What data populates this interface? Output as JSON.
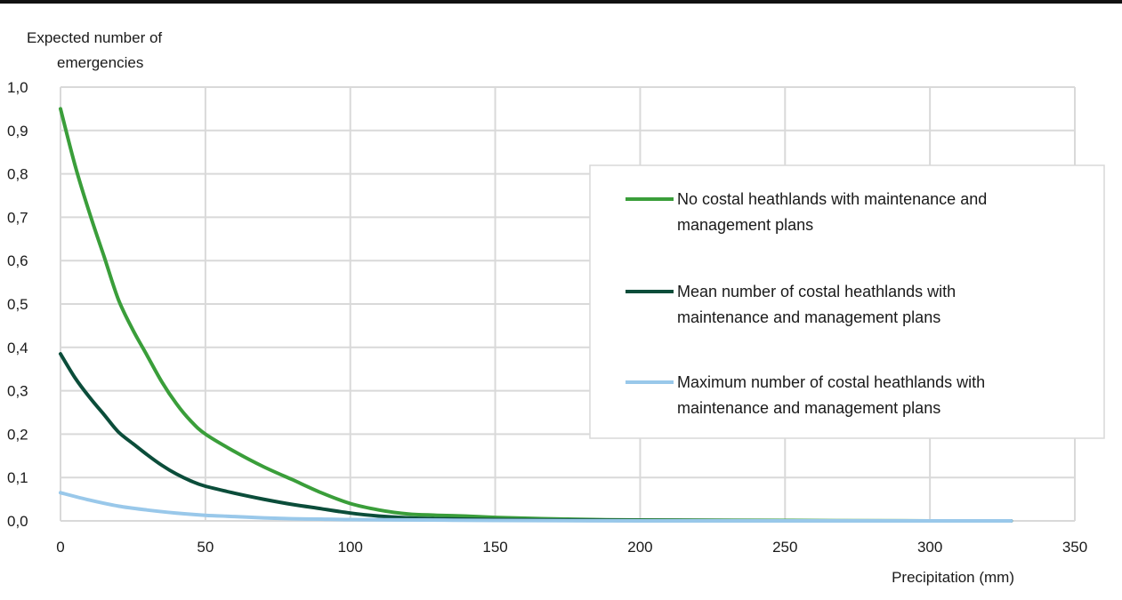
{
  "chart_data": {
    "type": "line",
    "title": "",
    "ylabel_lines": [
      "Expected number of",
      "emergencies"
    ],
    "xlabel": "Precipitation (mm)",
    "xlim": [
      0,
      350
    ],
    "ylim": [
      0,
      1.0
    ],
    "x_ticks": [
      0,
      50,
      100,
      150,
      200,
      250,
      300,
      350
    ],
    "x_tick_labels": [
      "0",
      "50",
      "100",
      "150",
      "200",
      "250",
      "300",
      "350"
    ],
    "y_ticks": [
      0,
      0.1,
      0.2,
      0.3,
      0.4,
      0.5,
      0.6,
      0.7,
      0.8,
      0.9,
      1.0
    ],
    "y_tick_labels": [
      "0,0",
      "0,1",
      "0,2",
      "0,3",
      "0,4",
      "0,5",
      "0,6",
      "0,7",
      "0,8",
      "0,9",
      "1,0"
    ],
    "grid": true,
    "legend_position": "right",
    "series": [
      {
        "name_lines": [
          "No costal heathlands with maintenance and",
          "management plans"
        ],
        "color": "#3a9e3a",
        "x": [
          0,
          5,
          10,
          15,
          20,
          25,
          30,
          35,
          40,
          45,
          50,
          60,
          70,
          80,
          90,
          100,
          110,
          120,
          130,
          140,
          150,
          175,
          200,
          250,
          300,
          328
        ],
        "y": [
          0.95,
          0.82,
          0.71,
          0.61,
          0.51,
          0.44,
          0.38,
          0.32,
          0.27,
          0.23,
          0.2,
          0.16,
          0.125,
          0.095,
          0.065,
          0.04,
          0.025,
          0.016,
          0.013,
          0.011,
          0.008,
          0.004,
          0.002,
          0.001,
          0.0,
          0.0
        ]
      },
      {
        "name_lines": [
          "Mean number of costal heathlands with",
          "maintenance and management plans"
        ],
        "color": "#0b4d3a",
        "x": [
          0,
          5,
          10,
          15,
          20,
          25,
          30,
          35,
          40,
          45,
          50,
          60,
          70,
          80,
          90,
          100,
          110,
          120,
          130,
          150,
          175,
          200,
          250,
          300,
          328
        ],
        "y": [
          0.385,
          0.33,
          0.285,
          0.245,
          0.205,
          0.178,
          0.152,
          0.128,
          0.108,
          0.092,
          0.08,
          0.064,
          0.05,
          0.038,
          0.028,
          0.018,
          0.011,
          0.007,
          0.005,
          0.003,
          0.002,
          0.001,
          0.0,
          0.0,
          0.0
        ]
      },
      {
        "name_lines": [
          "Maximum number of costal heathlands with",
          "maintenance and management plans"
        ],
        "color": "#99c8ea",
        "x": [
          0,
          10,
          20,
          30,
          40,
          50,
          60,
          70,
          80,
          90,
          100,
          125,
          150,
          200,
          250,
          300,
          328
        ],
        "y": [
          0.065,
          0.048,
          0.034,
          0.025,
          0.018,
          0.013,
          0.01,
          0.007,
          0.005,
          0.004,
          0.003,
          0.002,
          0.001,
          0.0,
          0.0,
          0.0,
          0.0
        ]
      }
    ]
  }
}
